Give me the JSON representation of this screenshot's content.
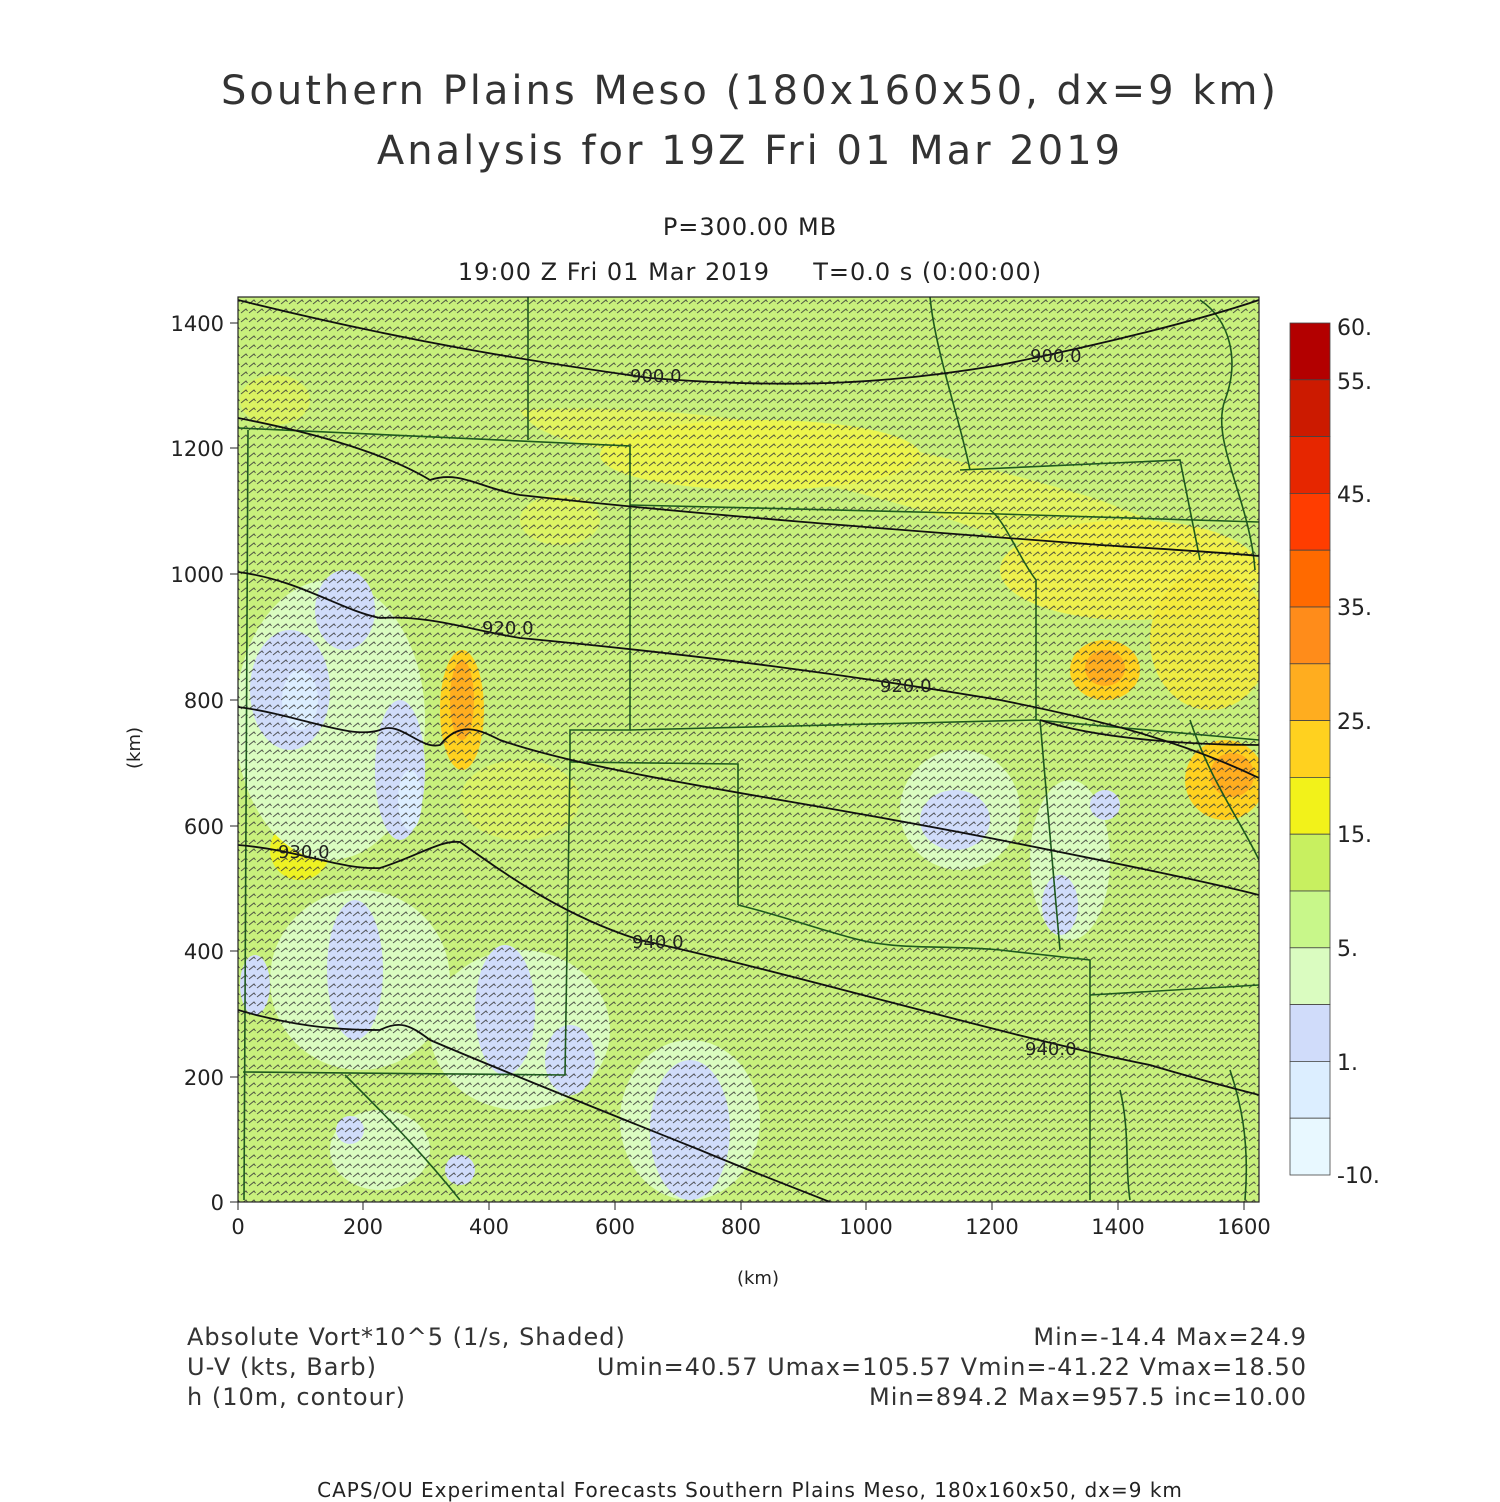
{
  "title_line1": "Southern Plains Meso (180x160x50, dx=9 km)",
  "title_line2": "Analysis for 19Z Fri 01 Mar 2019",
  "level": "P=300.00 MB",
  "valid_time": "19:00 Z Fri 01 Mar 2019     T=0.0 s (0:00:00)",
  "x_axis_label": "(km)",
  "y_axis_label": "(km)",
  "x_ticks": [
    "0",
    "200",
    "400",
    "600",
    "800",
    "1000",
    "1200",
    "1400",
    "1600"
  ],
  "y_ticks": [
    "0",
    "200",
    "400",
    "600",
    "800",
    "1000",
    "1200",
    "1400"
  ],
  "colorbar": {
    "labels": [
      "60.",
      "55.",
      "45.",
      "35.",
      "25.",
      "15.",
      "5.",
      "1.",
      "-10."
    ],
    "colors": [
      "#b30000",
      "#cc1a00",
      "#e62600",
      "#ff3d00",
      "#ff6a00",
      "#ff8c1a",
      "#ffad1f",
      "#ffd11f",
      "#f2f21a",
      "#c8f060",
      "#c8f78a",
      "#dafcc0",
      "#d0dcfa",
      "#dceeff",
      "#e8f8ff"
    ]
  },
  "contours": [
    {
      "label": "900.0"
    },
    {
      "label": "900.0"
    },
    {
      "label": "920.0"
    },
    {
      "label": "920.0"
    },
    {
      "label": "930.0"
    },
    {
      "label": "940.0"
    },
    {
      "label": "940.0"
    }
  ],
  "fields": {
    "vort_name": "Absolute Vort*10^5 (1/s, Shaded)",
    "vort_stats": "Min=-14.4 Max=24.9",
    "wind_name": "U-V (kts, Barb)",
    "wind_stats": "Umin=40.57 Umax=105.57 Vmin=-41.22 Vmax=18.50",
    "height_name": "h (10m, contour)",
    "height_stats": "Min=894.2 Max=957.5 inc=10.00"
  },
  "footer": "CAPS/OU Experimental Forecasts  Southern Plains Meso, 180x160x50, dx=9 km"
}
